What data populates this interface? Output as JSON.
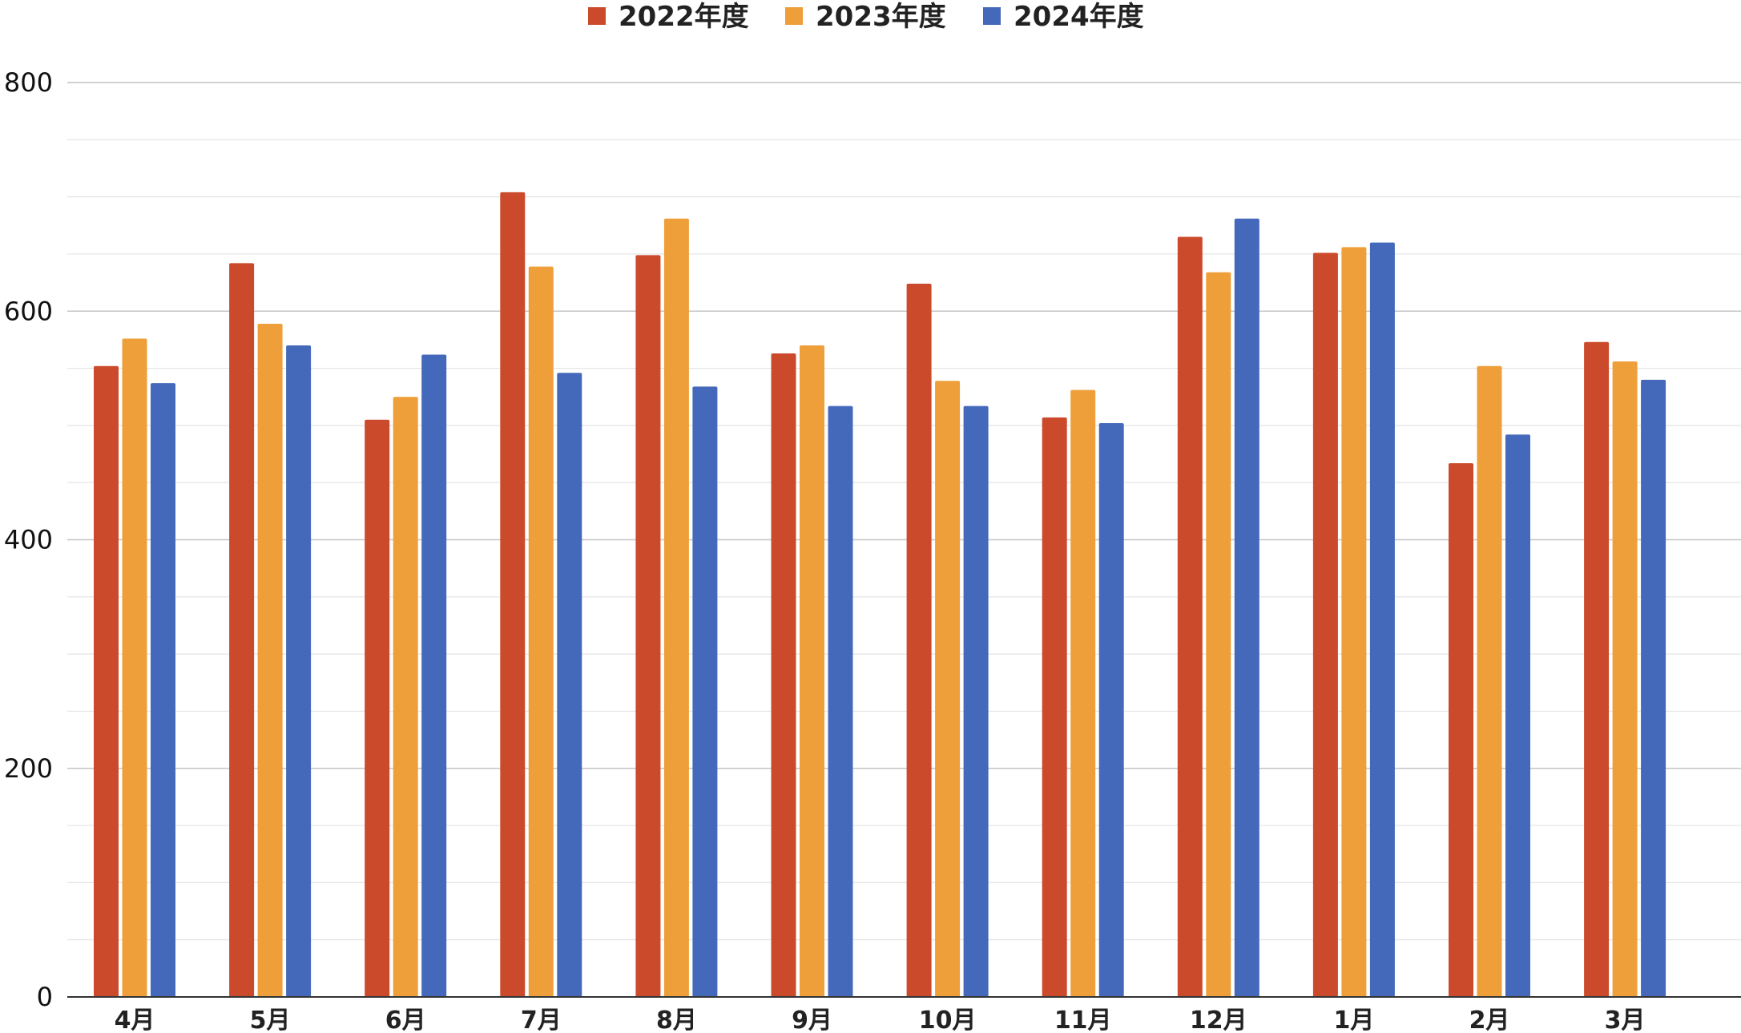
{
  "chart_data": {
    "type": "bar",
    "categories": [
      "4月",
      "5月",
      "6月",
      "7月",
      "8月",
      "9月",
      "10月",
      "11月",
      "12月",
      "1月",
      "2月",
      "3月"
    ],
    "series": [
      {
        "name": "2022年度",
        "color": "#cc4a2c",
        "values": [
          552,
          642,
          505,
          704,
          649,
          563,
          624,
          507,
          665,
          651,
          467,
          573
        ]
      },
      {
        "name": "2023年度",
        "color": "#ee9f39",
        "values": [
          576,
          589,
          525,
          639,
          681,
          570,
          539,
          531,
          634,
          656,
          552,
          556
        ]
      },
      {
        "name": "2024年度",
        "color": "#4469bb",
        "values": [
          537,
          570,
          562,
          546,
          534,
          517,
          517,
          502,
          681,
          660,
          492,
          540
        ]
      }
    ],
    "ylim": [
      0,
      800
    ],
    "yticks": [
      "0",
      "200",
      "400",
      "600",
      "800"
    ],
    "grid": true,
    "legend_position": "top-center",
    "title": "",
    "xlabel": "",
    "ylabel": ""
  }
}
